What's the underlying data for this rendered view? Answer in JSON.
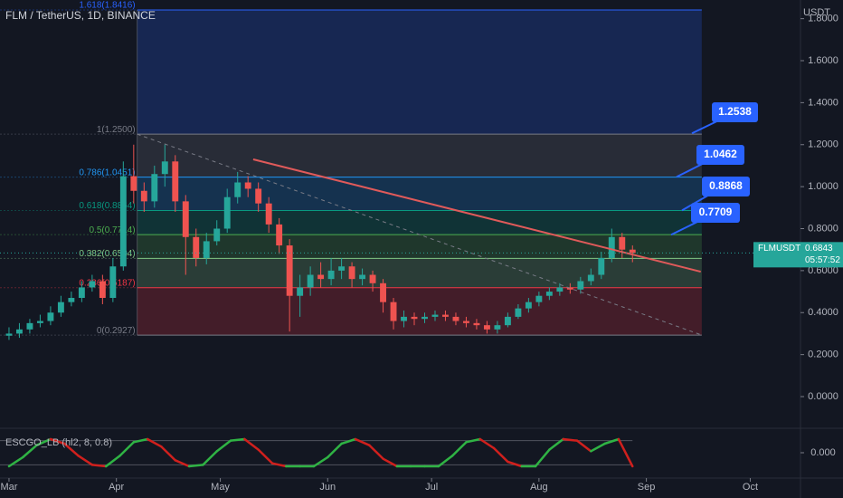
{
  "chart_data": {
    "type": "candlestick",
    "title": "FLM / TetherUS, 1D, BINANCE",
    "currency": "USDT",
    "x": [
      0,
      3,
      6,
      9,
      12,
      15,
      18,
      21,
      24,
      27,
      30,
      33,
      36,
      39,
      42,
      45,
      48,
      51,
      54,
      57,
      60,
      63,
      66,
      69,
      72,
      75,
      78,
      81,
      84,
      87,
      90,
      93,
      96,
      99,
      102,
      105,
      108,
      111,
      114,
      117,
      120,
      123,
      126,
      129,
      132,
      135,
      138,
      141,
      144,
      147,
      150,
      153,
      156,
      159,
      162,
      165,
      168,
      171,
      174,
      177,
      180
    ],
    "ohlc": [
      [
        0.29,
        0.33,
        0.27,
        0.3
      ],
      [
        0.3,
        0.35,
        0.28,
        0.32
      ],
      [
        0.32,
        0.37,
        0.3,
        0.35
      ],
      [
        0.35,
        0.39,
        0.33,
        0.36
      ],
      [
        0.36,
        0.43,
        0.34,
        0.4
      ],
      [
        0.4,
        0.48,
        0.38,
        0.45
      ],
      [
        0.45,
        0.5,
        0.43,
        0.47
      ],
      [
        0.47,
        0.55,
        0.45,
        0.52
      ],
      [
        0.52,
        0.58,
        0.5,
        0.55
      ],
      [
        0.55,
        0.58,
        0.44,
        0.47
      ],
      [
        0.47,
        0.66,
        0.45,
        0.62
      ],
      [
        0.62,
        1.12,
        0.6,
        1.05
      ],
      [
        1.05,
        1.2,
        0.92,
        0.98
      ],
      [
        0.98,
        1.02,
        0.88,
        0.93
      ],
      [
        0.93,
        1.1,
        0.9,
        1.06
      ],
      [
        1.06,
        1.2,
        1.0,
        1.12
      ],
      [
        1.12,
        1.15,
        0.88,
        0.93
      ],
      [
        0.93,
        0.96,
        0.58,
        0.76
      ],
      [
        0.76,
        0.8,
        0.62,
        0.66
      ],
      [
        0.66,
        0.78,
        0.63,
        0.74
      ],
      [
        0.74,
        0.84,
        0.72,
        0.8
      ],
      [
        0.8,
        0.99,
        0.78,
        0.95
      ],
      [
        0.95,
        1.07,
        0.92,
        1.02
      ],
      [
        1.02,
        1.05,
        0.95,
        0.99
      ],
      [
        0.99,
        1.02,
        0.88,
        0.92
      ],
      [
        0.92,
        0.95,
        0.78,
        0.82
      ],
      [
        0.82,
        0.85,
        0.68,
        0.72
      ],
      [
        0.72,
        0.75,
        0.31,
        0.48
      ],
      [
        0.48,
        0.58,
        0.38,
        0.52
      ],
      [
        0.52,
        0.62,
        0.48,
        0.58
      ],
      [
        0.58,
        0.64,
        0.52,
        0.56
      ],
      [
        0.56,
        0.66,
        0.53,
        0.6
      ],
      [
        0.6,
        0.66,
        0.56,
        0.62
      ],
      [
        0.62,
        0.64,
        0.52,
        0.56
      ],
      [
        0.56,
        0.61,
        0.53,
        0.58
      ],
      [
        0.58,
        0.6,
        0.5,
        0.54
      ],
      [
        0.54,
        0.56,
        0.4,
        0.45
      ],
      [
        0.45,
        0.47,
        0.32,
        0.36
      ],
      [
        0.36,
        0.41,
        0.33,
        0.38
      ],
      [
        0.38,
        0.4,
        0.34,
        0.37
      ],
      [
        0.37,
        0.4,
        0.35,
        0.38
      ],
      [
        0.38,
        0.41,
        0.36,
        0.39
      ],
      [
        0.39,
        0.41,
        0.36,
        0.38
      ],
      [
        0.38,
        0.4,
        0.34,
        0.36
      ],
      [
        0.36,
        0.38,
        0.33,
        0.35
      ],
      [
        0.35,
        0.37,
        0.32,
        0.34
      ],
      [
        0.34,
        0.36,
        0.3,
        0.32
      ],
      [
        0.32,
        0.36,
        0.3,
        0.34
      ],
      [
        0.34,
        0.4,
        0.33,
        0.38
      ],
      [
        0.38,
        0.44,
        0.37,
        0.42
      ],
      [
        0.42,
        0.47,
        0.4,
        0.45
      ],
      [
        0.45,
        0.5,
        0.43,
        0.48
      ],
      [
        0.48,
        0.52,
        0.46,
        0.5
      ],
      [
        0.5,
        0.54,
        0.48,
        0.52
      ],
      [
        0.52,
        0.54,
        0.49,
        0.51
      ],
      [
        0.51,
        0.57,
        0.49,
        0.55
      ],
      [
        0.55,
        0.61,
        0.53,
        0.58
      ],
      [
        0.58,
        0.69,
        0.56,
        0.66
      ],
      [
        0.66,
        0.8,
        0.64,
        0.76
      ],
      [
        0.76,
        0.78,
        0.66,
        0.7
      ],
      [
        0.7,
        0.72,
        0.64,
        0.6843
      ]
    ],
    "up_color": "#26a69a",
    "down_color": "#ef5350",
    "xlim": [
      -2.6,
      228.5
    ],
    "xticks": [
      {
        "value": 0,
        "label": "Mar"
      },
      {
        "value": 31,
        "label": "Apr"
      },
      {
        "value": 61,
        "label": "May"
      },
      {
        "value": 92,
        "label": "Jun"
      },
      {
        "value": 122,
        "label": "Jul"
      },
      {
        "value": 153,
        "label": "Aug"
      },
      {
        "value": 184,
        "label": "Sep"
      },
      {
        "value": 214,
        "label": "Oct"
      }
    ],
    "ylim": [
      -0.138,
      1.889
    ],
    "yticks": [
      {
        "value": 0,
        "label": "0.0000"
      },
      {
        "value": 0.2,
        "label": "0.2000"
      },
      {
        "value": 0.4,
        "label": "0.4000"
      },
      {
        "value": 0.6,
        "label": "0.6000"
      },
      {
        "value": 0.8,
        "label": "0.8000"
      },
      {
        "value": 1,
        "label": "1.0000"
      },
      {
        "value": 1.2,
        "label": "1.2000"
      },
      {
        "value": 1.4,
        "label": "1.4000"
      },
      {
        "value": 1.6,
        "label": "1.6000"
      },
      {
        "value": 1.8,
        "label": "1.8000"
      }
    ],
    "fib": {
      "x_range": [
        37,
        200
      ],
      "levels": [
        {
          "label": "1.618(1.8416)",
          "value": 1.8416,
          "color": "#2962ff"
        },
        {
          "label": "1(1.2500)",
          "value": 1.25,
          "color": "#787b86"
        },
        {
          "label": "0.786(1.0451)",
          "value": 1.0451,
          "color": "#2196f3"
        },
        {
          "label": "0.618(0.8864)",
          "value": 0.8864,
          "color": "#089981"
        },
        {
          "label": "0.5(0.7714)",
          "value": 0.7714,
          "color": "#4caf50"
        },
        {
          "label": "0.382(0.6584)",
          "value": 0.6584,
          "color": "#81c784"
        },
        {
          "label": "0.236(0.5187)",
          "value": 0.5187,
          "color": "#f23645"
        },
        {
          "label": "0(0.2927)",
          "value": 0.2927,
          "color": "#787b86"
        }
      ]
    },
    "trendlines": [
      {
        "x": [
          70.5,
          199.7
        ],
        "values": [
          1.13,
          0.595
        ],
        "color": "#e05a5a",
        "dashed": false
      },
      {
        "x": [
          37,
          200
        ],
        "values": [
          1.25,
          0.293
        ],
        "color": "#787b86",
        "dashed": true
      }
    ],
    "callouts": [
      1.2538,
      1.0462,
      0.8868,
      0.7709
    ],
    "last_price": {
      "symbol": "FLMUSDT",
      "value": 0.6843,
      "countdown": "05:57:52"
    },
    "indicator": {
      "name": "ESCGO_LB (hl2, 8, 0.8)",
      "x": [
        0,
        4,
        8,
        12,
        16,
        20,
        24,
        28,
        32,
        36,
        40,
        44,
        48,
        52,
        56,
        60,
        64,
        68,
        72,
        76,
        80,
        84,
        88,
        92,
        96,
        100,
        104,
        108,
        112,
        116,
        120,
        124,
        128,
        132,
        136,
        140,
        144,
        148,
        152,
        156,
        160,
        164,
        168,
        172,
        176,
        180
      ],
      "values": [
        -0.9,
        -0.3,
        0.5,
        0.9,
        0.6,
        -0.2,
        -0.8,
        -0.9,
        -0.2,
        0.7,
        0.9,
        0.4,
        -0.5,
        -0.9,
        -0.8,
        0.1,
        0.8,
        0.9,
        0.2,
        -0.7,
        -0.9,
        -0.9,
        -0.9,
        -0.3,
        0.6,
        0.9,
        0.5,
        -0.4,
        -0.9,
        -0.9,
        -0.9,
        -0.9,
        -0.2,
        0.7,
        0.9,
        0.3,
        -0.6,
        -0.9,
        -0.9,
        0.2,
        0.9,
        0.8,
        0.1,
        0.6,
        0.9,
        -0.9
      ],
      "ylim": [
        -1.2,
        1.2
      ],
      "yticks": [
        {
          "value": 0,
          "label": "0.000"
        }
      ],
      "up_color": "#2fb344",
      "down_color": "#d0201d"
    }
  }
}
